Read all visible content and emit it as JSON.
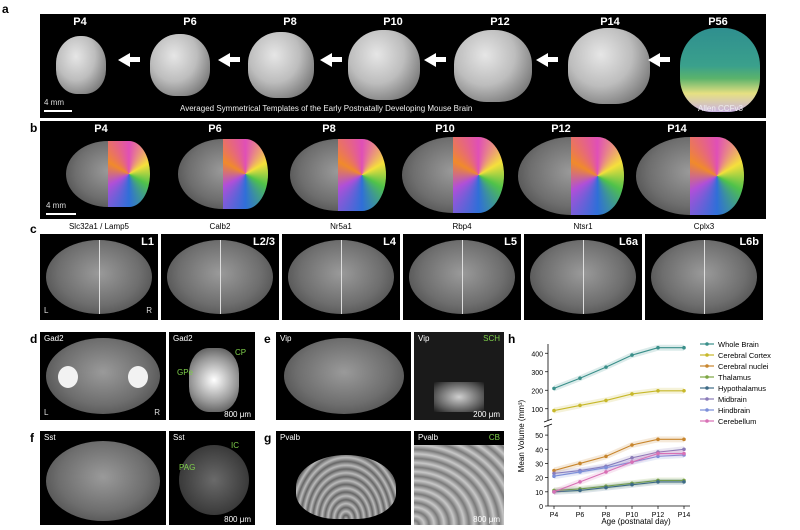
{
  "panel_letters": {
    "a": "a",
    "b": "b",
    "c": "c",
    "d": "d",
    "e": "e",
    "f": "f",
    "g": "g",
    "h": "h"
  },
  "panel_a": {
    "ages": [
      "P4",
      "P6",
      "P8",
      "P10",
      "P12",
      "P14",
      "P56"
    ],
    "caption": "Averaged Symmetrical Templates of the Early Postnatally Developing Mouse Brain",
    "reference": "Allen CCFv3",
    "scale": "4 mm"
  },
  "panel_b": {
    "ages": [
      "P4",
      "P6",
      "P8",
      "P10",
      "P12",
      "P14"
    ],
    "scale": "4 mm"
  },
  "panel_c": {
    "markers": [
      "Slc32a1 / Lamp5",
      "Calb2",
      "Nr5a1",
      "Rbp4",
      "Ntsr1",
      "Cplx3"
    ],
    "layers": [
      "L1",
      "L2/3",
      "L4",
      "L5",
      "L6a",
      "L6b"
    ],
    "left": "L",
    "right": "R"
  },
  "panel_d": {
    "gene_left": "Gad2",
    "gene_right": "Gad2",
    "region1": "CP",
    "region2": "GPe",
    "scale": "800 μm",
    "left": "L",
    "right": "R"
  },
  "panel_e": {
    "gene_left": "Vip",
    "gene_right": "Vip",
    "region": "SCH",
    "scale": "200 μm"
  },
  "panel_f": {
    "gene_left": "Sst",
    "gene_right": "Sst",
    "region1": "IC",
    "region2": "PAG",
    "scale": "800 μm"
  },
  "panel_g": {
    "gene_left": "Pvalb",
    "gene_right": "Pvalb",
    "region": "CB",
    "scale": "800 μm"
  },
  "watermark": "",
  "chart_data": {
    "type": "line",
    "xlabel": "Age (postnatal day)",
    "ylabel": "Mean Volume (mm³)",
    "categories": [
      "P4",
      "P6",
      "P8",
      "P10",
      "P12",
      "P14"
    ],
    "upper_ticks": [
      100,
      200,
      300,
      400
    ],
    "lower_ticks": [
      0,
      10,
      20,
      30,
      40,
      50
    ],
    "axis_break": true,
    "series": [
      {
        "name": "Whole Brain",
        "color": "#3a8f8a",
        "values": [
          210,
          265,
          325,
          390,
          430,
          430
        ]
      },
      {
        "name": "Cerebral Cortex",
        "color": "#c7b82a",
        "values": [
          90,
          118,
          145,
          180,
          197,
          197
        ]
      },
      {
        "name": "Cerebral nuclei",
        "color": "#c8862e",
        "values": [
          25,
          30,
          35,
          43,
          47,
          47
        ]
      },
      {
        "name": "Thalamus",
        "color": "#7da642",
        "values": [
          11,
          12,
          14,
          16,
          18,
          18
        ]
      },
      {
        "name": "Hypothalamus",
        "color": "#3d6a86",
        "values": [
          10,
          11,
          13,
          15,
          17,
          17
        ]
      },
      {
        "name": "Midbrain",
        "color": "#8a7ab8",
        "values": [
          23,
          25,
          28,
          34,
          38,
          40
        ]
      },
      {
        "name": "Hindbrain",
        "color": "#7b8ed9",
        "values": [
          21,
          24,
          27,
          31,
          35,
          36
        ]
      },
      {
        "name": "Cerebellum",
        "color": "#d870b5",
        "values": [
          10,
          17,
          24,
          31,
          37,
          37
        ]
      }
    ]
  }
}
